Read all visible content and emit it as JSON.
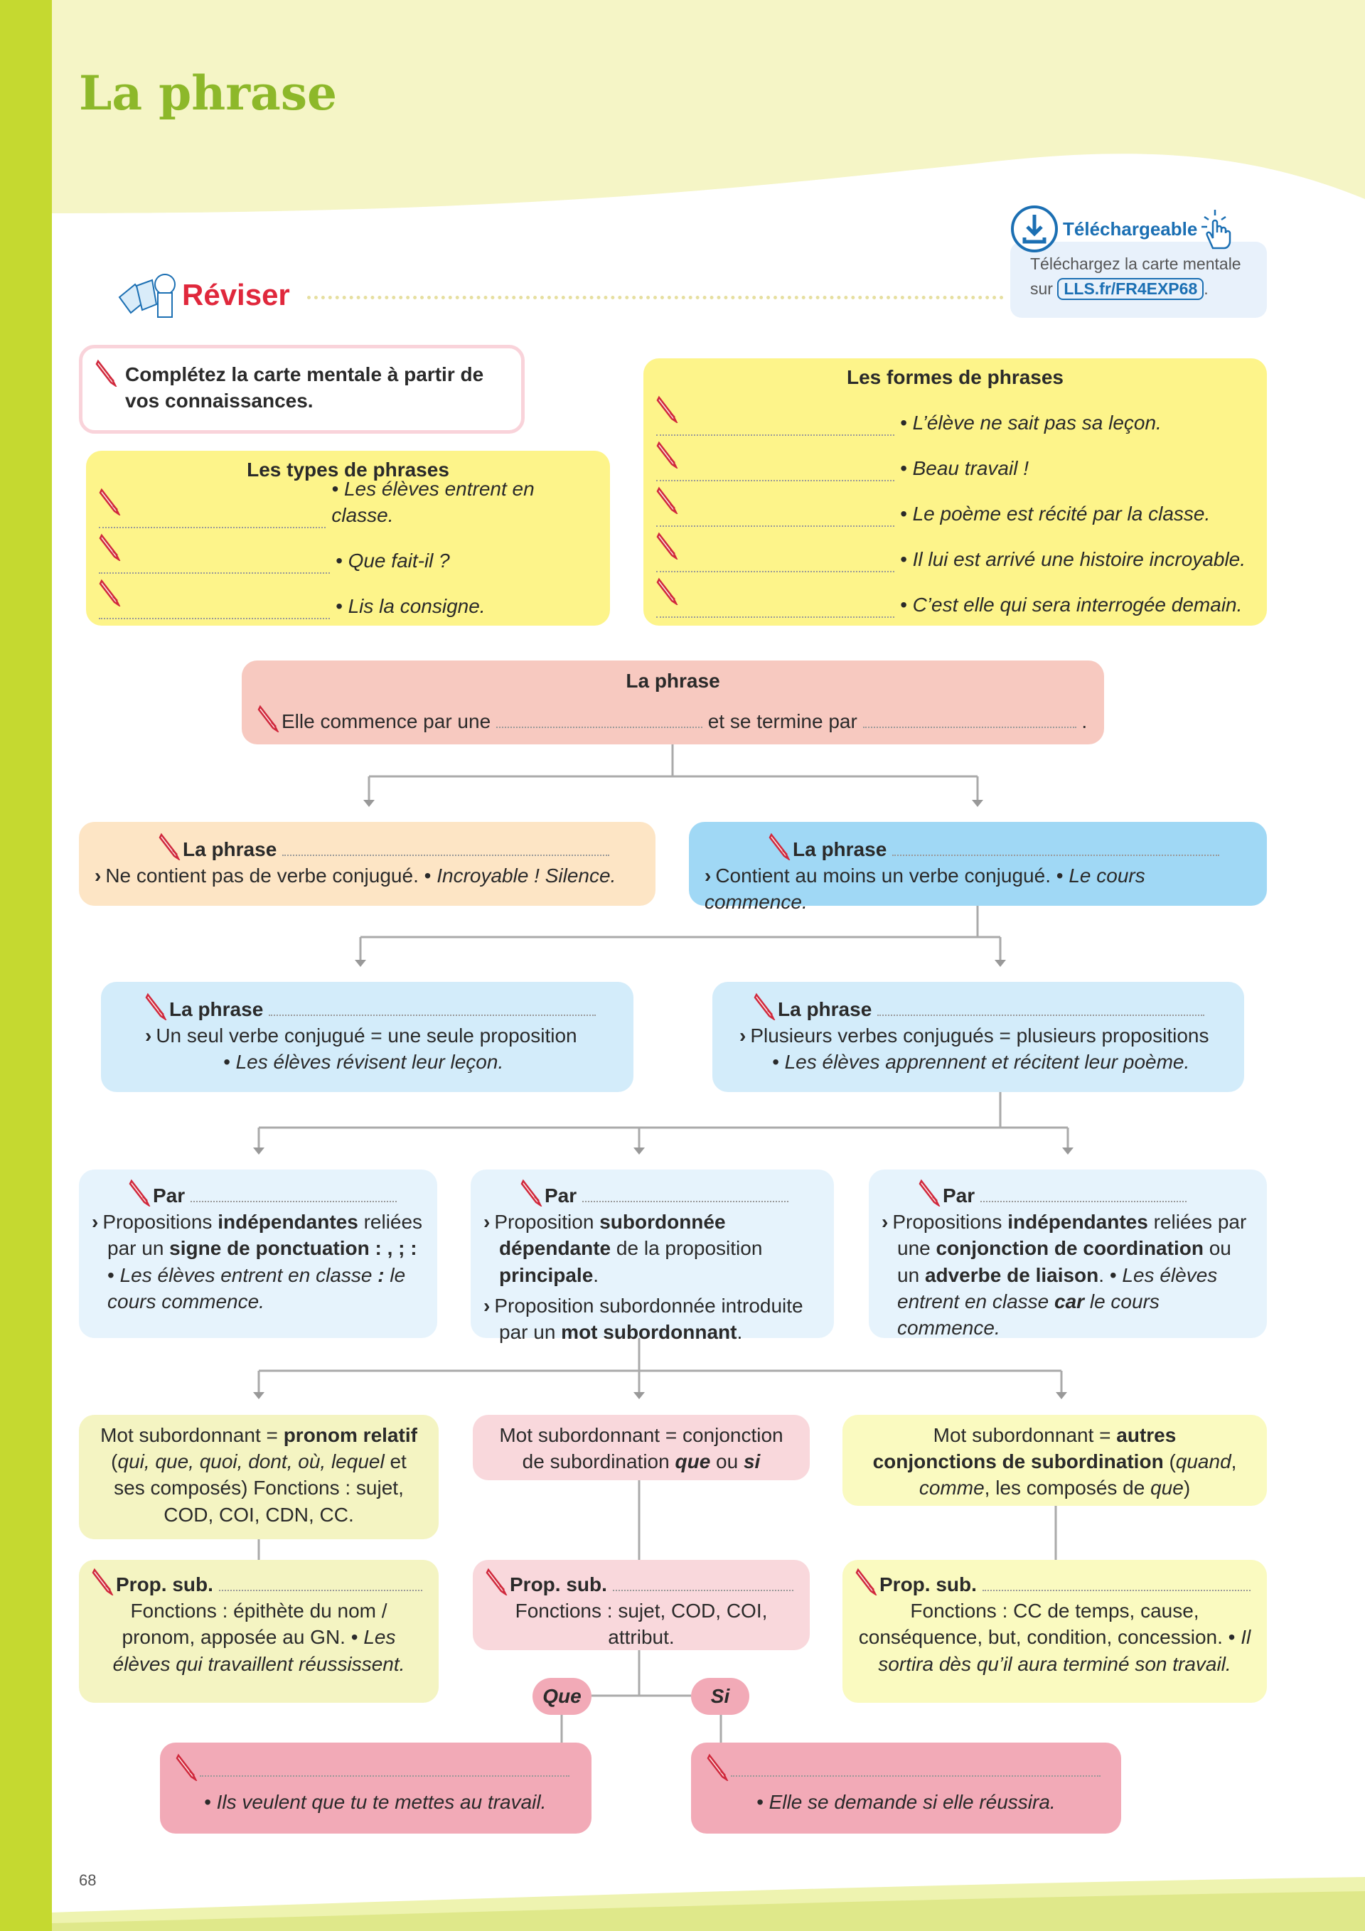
{
  "page": {
    "title": "La phrase",
    "page_number": "68"
  },
  "download": {
    "label": "Téléchargeable",
    "text": "Téléchargez la carte mentale",
    "prefix": "sur",
    "link": "LLS.fr/FR4EXP68",
    "suffix": "."
  },
  "section": {
    "label": "Réviser"
  },
  "instruction": "Complétez la carte mentale à partir de vos connaissances.",
  "types": {
    "title": "Les types de phrases",
    "examples": [
      "• Les élèves entrent en classe.",
      "• Que fait-il ?",
      "• Lis la consigne."
    ]
  },
  "formes": {
    "title": "Les formes de phrases",
    "examples": [
      "• L’élève ne sait pas sa leçon.",
      "• Beau travail !",
      "• Le poème est récité par la classe.",
      "• Il lui est arrivé une histoire incroyable.",
      "• C’est elle qui sera interrogée demain."
    ]
  },
  "phrase": {
    "title": "La phrase",
    "part1": "Elle commence par une",
    "part2": "et se termine par",
    "end": "."
  },
  "row1": [
    {
      "head": "La phrase",
      "text": [
        {
          "t": "Ne contient pas de verbe conjugué. • "
        },
        {
          "t": "Incroyable ! Silence.",
          "s": "i"
        }
      ]
    },
    {
      "head": "La phrase",
      "text": [
        {
          "t": "Contient au moins un verbe conjugué. • "
        },
        {
          "t": "Le cours commence.",
          "s": "i"
        }
      ]
    }
  ],
  "row2": [
    {
      "head": "La phrase",
      "text": [
        {
          "t": "Un seul verbe conjugué = une seule proposition"
        }
      ],
      "example": "• Les élèves révisent leur leçon."
    },
    {
      "head": "La phrase",
      "text": [
        {
          "t": "Plusieurs verbes conjugués = plusieurs propositions"
        }
      ],
      "example": "• Les élèves apprennent et récitent leur poème."
    }
  ],
  "row3": [
    {
      "head": "Par",
      "paras": [
        [
          {
            "t": "Propositions "
          },
          {
            "t": "indépendantes",
            "s": "b"
          },
          {
            "t": " reliées par un "
          },
          {
            "t": "signe de ponctuation",
            "s": "b"
          },
          {
            "t": " : , ; :",
            "s": "b"
          },
          {
            "t": " • "
          },
          {
            "t": "Les élèves entrent en classe ",
            "s": "i"
          },
          {
            "t": ":",
            "s": "bi"
          },
          {
            "t": " le cours commence.",
            "s": "i"
          }
        ]
      ]
    },
    {
      "head": "Par",
      "paras": [
        [
          {
            "t": "Proposition "
          },
          {
            "t": "subordonnée dépendante",
            "s": "b"
          },
          {
            "t": " de la proposition "
          },
          {
            "t": "principale",
            "s": "b"
          },
          {
            "t": "."
          }
        ],
        [
          {
            "t": "Proposition subordonnée introduite par un "
          },
          {
            "t": "mot subordonnant",
            "s": "b"
          },
          {
            "t": "."
          }
        ]
      ]
    },
    {
      "head": "Par",
      "paras": [
        [
          {
            "t": "Propositions "
          },
          {
            "t": "indépendantes",
            "s": "b"
          },
          {
            "t": " reliées par une "
          },
          {
            "t": "conjonction de coordination",
            "s": "b"
          },
          {
            "t": " ou un "
          },
          {
            "t": "adverbe de liaison",
            "s": "b"
          },
          {
            "t": ". • "
          },
          {
            "t": "Les élèves entrent en classe ",
            "s": "i"
          },
          {
            "t": "car",
            "s": "bi"
          },
          {
            "t": " le cours commence.",
            "s": "i"
          }
        ]
      ]
    }
  ],
  "row4": [
    [
      {
        "t": "Mot subordonnant = "
      },
      {
        "t": "pronom relatif",
        "s": "b"
      },
      {
        "t": " ("
      },
      {
        "t": "qui, que, quoi, dont, où, lequel",
        "s": "i"
      },
      {
        "t": " et ses composés) Fonctions : sujet, COD, COI, CDN, CC."
      }
    ],
    [
      {
        "t": "Mot subordonnant = conjonction de subordination "
      },
      {
        "t": "que",
        "s": "bi"
      },
      {
        "t": " ou "
      },
      {
        "t": "si",
        "s": "bi"
      }
    ],
    [
      {
        "t": "Mot subordonnant = "
      },
      {
        "t": "autres conjonctions de subordination",
        "s": "b"
      },
      {
        "t": " ("
      },
      {
        "t": "quand",
        "s": "i"
      },
      {
        "t": ", "
      },
      {
        "t": "comme",
        "s": "i"
      },
      {
        "t": ", les composés de "
      },
      {
        "t": "que",
        "s": "i"
      },
      {
        "t": ")"
      }
    ]
  ],
  "row5": [
    {
      "head": "Prop. sub.",
      "text": [
        {
          "t": "Fonctions : épithète du nom / pronom, apposée au GN. • "
        },
        {
          "t": "Les élèves qui travaillent réussissent.",
          "s": "i"
        }
      ]
    },
    {
      "head": "Prop. sub.",
      "text": [
        {
          "t": "Fonctions : sujet, COD, COI, attribut."
        }
      ]
    },
    {
      "head": "Prop. sub.",
      "text": [
        {
          "t": "Fonctions : CC de temps, cause, conséquence, but, condition, concession. • "
        },
        {
          "t": "Il sortira dès qu’il aura terminé son travail.",
          "s": "i"
        }
      ]
    }
  ],
  "pills": {
    "que": "Que",
    "si": "Si"
  },
  "bottom": [
    "• Ils veulent que tu te mettes au travail.",
    "• Elle se demande si elle réussira."
  ],
  "colors": {
    "green": "#c5d930",
    "title": "#8db82a",
    "yellow": "#fdf48a",
    "pink": "#f7c9c0",
    "orange": "#fde5c5",
    "blue": "#a0d8f5",
    "lightblue": "#d3ecfa",
    "paleblue": "#e6f3fc",
    "rose": "#f2aab7",
    "accent_red": "#e0283c",
    "link_blue": "#1b6fb3"
  }
}
